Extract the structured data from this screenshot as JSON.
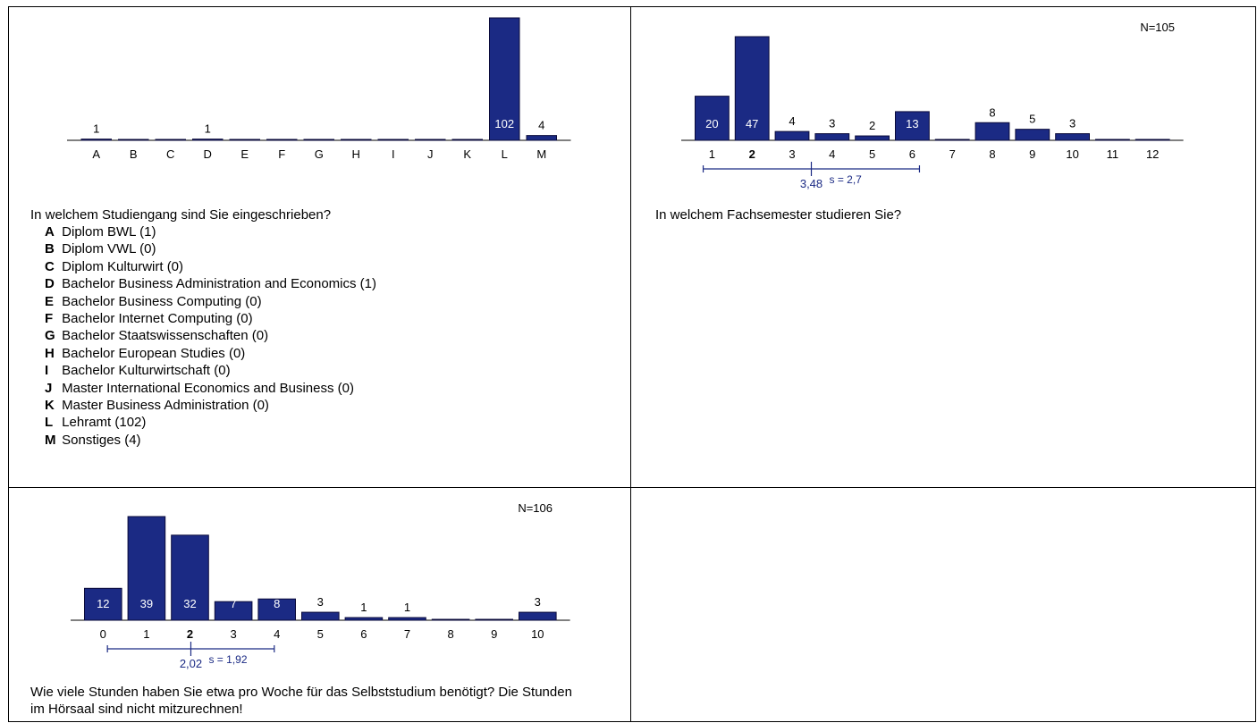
{
  "colors": {
    "bar": "#1b2a84",
    "bar_stroke": "#0a0a3a",
    "stat": "#1b2a84",
    "label_inside": "#ffffff",
    "label_outside": "#000000"
  },
  "panels": [
    {
      "question": "In welchem Studiengang sind Sie eingeschrieben?",
      "options": [
        {
          "key": "A",
          "text": "Diplom BWL (1)"
        },
        {
          "key": "B",
          "text": "Diplom VWL (0)"
        },
        {
          "key": "C",
          "text": "Diplom Kulturwirt (0)"
        },
        {
          "key": "D",
          "text": "Bachelor Business Administration and Economics (1)"
        },
        {
          "key": "E",
          "text": "Bachelor Business Computing (0)"
        },
        {
          "key": "F",
          "text": "Bachelor Internet Computing (0)"
        },
        {
          "key": "G",
          "text": "Bachelor Staatswissenschaften (0)"
        },
        {
          "key": "H",
          "text": "Bachelor European Studies (0)"
        },
        {
          "key": "I",
          "text": "Bachelor Kulturwirtschaft (0)"
        },
        {
          "key": "J",
          "text": "Master International Economics and Business (0)"
        },
        {
          "key": "K",
          "text": "Master Business Administration (0)"
        },
        {
          "key": "L",
          "text": "Lehramt (102)"
        },
        {
          "key": "M",
          "text": "Sonstiges (4)"
        }
      ]
    },
    {
      "question": "In welchem Fachsemester studieren Sie?"
    },
    {
      "question": "Wie viele Stunden haben Sie etwa pro Woche für das Selbststudium benötigt? Die Stunden im Hörsaal sind nicht mitzurechnen!"
    }
  ],
  "chart_data": [
    {
      "type": "bar",
      "categories": [
        "A",
        "B",
        "C",
        "D",
        "E",
        "F",
        "G",
        "H",
        "I",
        "J",
        "K",
        "L",
        "M"
      ],
      "values": [
        1,
        0,
        0,
        1,
        0,
        0,
        0,
        0,
        0,
        0,
        0,
        102,
        4
      ],
      "n_label": "",
      "ylim": [
        0,
        102
      ]
    },
    {
      "type": "bar",
      "categories": [
        "1",
        "2",
        "3",
        "4",
        "5",
        "6",
        "7",
        "8",
        "9",
        "10",
        "11",
        "12"
      ],
      "values": [
        20,
        47,
        4,
        3,
        2,
        13,
        0,
        8,
        5,
        3,
        0,
        0
      ],
      "n_label": "N=105",
      "median": "2",
      "mean": 3.48,
      "mean_label": "3,48",
      "sd": 2.7,
      "sd_label": "s = 2,7",
      "ylim": [
        0,
        47
      ]
    },
    {
      "type": "bar",
      "categories": [
        "0",
        "1",
        "2",
        "3",
        "4",
        "5",
        "6",
        "7",
        "8",
        "9",
        "10"
      ],
      "values": [
        12,
        39,
        32,
        7,
        8,
        3,
        1,
        1,
        0,
        0,
        3
      ],
      "n_label": "N=106",
      "median": "2",
      "mean": 2.02,
      "mean_label": "2,02",
      "sd": 1.92,
      "sd_label": "s = 1,92",
      "ylim": [
        0,
        39
      ]
    }
  ]
}
